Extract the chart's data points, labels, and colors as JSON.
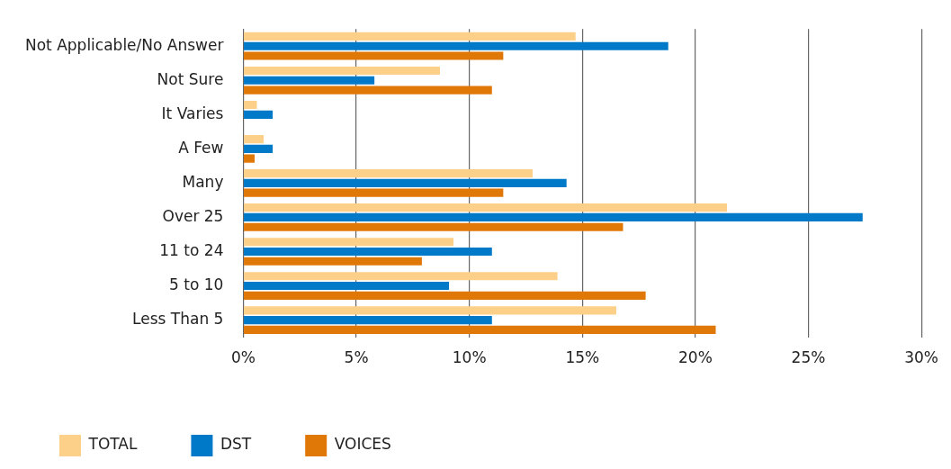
{
  "chart_data": {
    "type": "bar",
    "orientation": "horizontal",
    "categories": [
      "Not Applicable/No Answer",
      "Not Sure",
      "It Varies",
      "A Few",
      "Many",
      "Over 25",
      "11 to 24",
      "5 to 10",
      "Less Than 5"
    ],
    "series": [
      {
        "name": "TOTAL",
        "color": "#fdd08a",
        "values": [
          14.7,
          8.7,
          0.6,
          0.9,
          12.8,
          21.4,
          9.3,
          13.9,
          16.5
        ]
      },
      {
        "name": "DST",
        "color": "#0079c8",
        "values": [
          18.8,
          5.8,
          1.3,
          1.3,
          14.3,
          27.4,
          11.0,
          9.1,
          11.0
        ]
      },
      {
        "name": "VOICES",
        "color": "#e07808",
        "values": [
          11.5,
          11.0,
          null,
          0.5,
          11.5,
          16.8,
          7.9,
          17.8,
          20.9
        ]
      }
    ],
    "xlim": [
      0,
      30
    ],
    "xticks": [
      {
        "value": 0,
        "label": "0%"
      },
      {
        "value": 5,
        "label": "5%"
      },
      {
        "value": 10,
        "label": "10%"
      },
      {
        "value": 15,
        "label": "15%"
      },
      {
        "value": 20,
        "label": "20%"
      },
      {
        "value": 25,
        "label": "25%"
      },
      {
        "value": 30,
        "label": "30%"
      }
    ],
    "grid": "x",
    "legend": "bottom"
  }
}
